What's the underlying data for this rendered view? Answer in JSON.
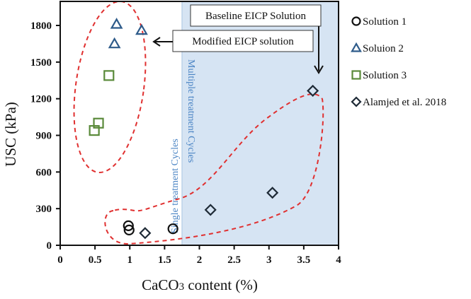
{
  "chart_data": {
    "type": "scatter",
    "title": "",
    "xlabel": "CaCO3 content (%)",
    "ylabel": "USC (kPa)",
    "xlim": [
      0,
      4
    ],
    "ylim": [
      0,
      1980
    ],
    "x_ticks": [
      "0",
      "0.5",
      "1",
      "1.5",
      "2",
      "2.5",
      "3",
      "3.5",
      "4"
    ],
    "y_ticks": [
      "0",
      "300",
      "600",
      "900",
      "1200",
      "1500",
      "1800"
    ],
    "grid": false,
    "legend_position": "right",
    "series": [
      {
        "name": "Solution 1",
        "marker": "circle",
        "color": "#111111",
        "points": [
          [
            0.98,
            160
          ],
          [
            0.99,
            125
          ],
          [
            1.62,
            135
          ]
        ]
      },
      {
        "name": "Soluion 2",
        "marker": "triangle",
        "color": "#2e5b8a",
        "points": [
          [
            0.81,
            1810
          ],
          [
            1.17,
            1760
          ],
          [
            0.78,
            1650
          ]
        ]
      },
      {
        "name": "Solution 3",
        "marker": "square",
        "color": "#5a8a3a",
        "points": [
          [
            0.7,
            1390
          ],
          [
            0.55,
            1000
          ],
          [
            0.49,
            940
          ]
        ]
      },
      {
        "name": "Alamjed et al. 2018",
        "marker": "diamond",
        "color": "#1e2a36",
        "points": [
          [
            1.22,
            100
          ],
          [
            2.16,
            290
          ],
          [
            3.05,
            430
          ],
          [
            3.63,
            1265
          ]
        ]
      }
    ],
    "shaded_region": {
      "x_from": 1.75,
      "x_to": 4,
      "color": "#d6e4f3"
    },
    "annotations": [
      {
        "text": "Baseline EICP Solution",
        "type": "box-with-arrow"
      },
      {
        "text": "Modified EICP solution",
        "type": "box-with-arrow"
      },
      {
        "text": "Single treatment Cycles",
        "type": "vertical-label"
      },
      {
        "text": "Multiple treatment Cycles",
        "type": "vertical-label"
      }
    ]
  },
  "labels": {
    "xlabel_main": "CaCO",
    "xlabel_sub": "3",
    "xlabel_rest": " content  (%)",
    "ylabel": "USC (kPa)",
    "baseline": "Baseline EICP Solution",
    "modified": "Modified EICP solution",
    "single": "Single treatment Cycles",
    "multiple": "Multiple treatment Cycles"
  },
  "legend": [
    {
      "label": "Solution 1",
      "marker": "circle-icon"
    },
    {
      "label": "Soluion 2",
      "marker": "triangle-icon"
    },
    {
      "label": "Solution 3",
      "marker": "square-icon"
    },
    {
      "label": "Alamjed et al. 2018",
      "marker": "diamond-icon"
    }
  ]
}
